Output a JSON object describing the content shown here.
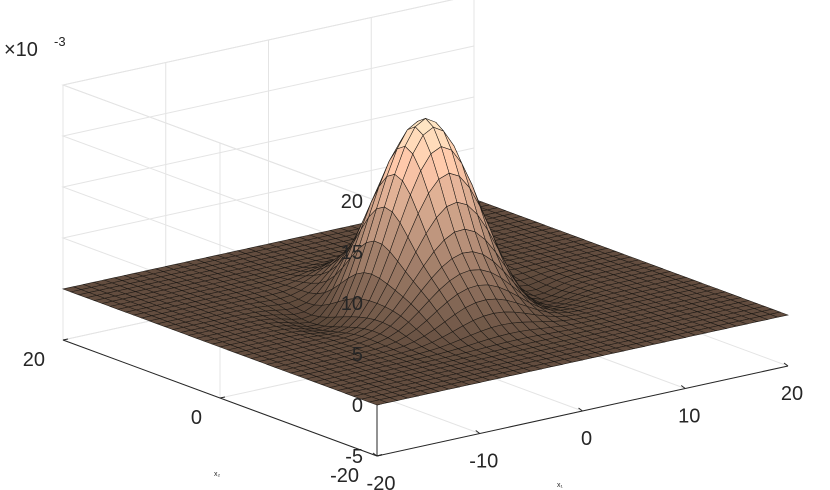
{
  "chart_data": {
    "type": "surface",
    "title": "",
    "xlabel": "x₁",
    "ylabel": "x₂",
    "zlabel": "",
    "xlim": [
      -20,
      20
    ],
    "ylim": [
      -20,
      20
    ],
    "zlim": [
      -5,
      20
    ],
    "z_multiplier_label": "×10",
    "z_multiplier_exponent": "-3",
    "x_ticks": [
      {
        "value": -20,
        "label": "-20"
      },
      {
        "value": -10,
        "label": "-10"
      },
      {
        "value": 0,
        "label": "0"
      },
      {
        "value": 10,
        "label": "10"
      },
      {
        "value": 20,
        "label": "20"
      }
    ],
    "y_ticks": [
      {
        "value": -20,
        "label": "-20"
      },
      {
        "value": 0,
        "label": "0"
      },
      {
        "value": 20,
        "label": "20"
      }
    ],
    "z_ticks": [
      {
        "value": -5,
        "label": "-5"
      },
      {
        "value": 0,
        "label": "0"
      },
      {
        "value": 5,
        "label": "5"
      },
      {
        "value": 10,
        "label": "10"
      },
      {
        "value": 15,
        "label": "15"
      },
      {
        "value": 20,
        "label": "20"
      }
    ],
    "surface_samples": [
      {
        "x": 0,
        "y": 0,
        "z": 18
      },
      {
        "x": 5,
        "y": 5,
        "z": 6
      },
      {
        "x": -5,
        "y": 5,
        "z": -1.5
      },
      {
        "x": 5,
        "y": -5,
        "z": -1.5
      },
      {
        "x": -5,
        "y": -5,
        "z": 3
      },
      {
        "x": 20,
        "y": 20,
        "z": 0
      },
      {
        "x": -20,
        "y": -20,
        "z": 0
      }
    ],
    "grid": true,
    "colormap": "copper"
  }
}
